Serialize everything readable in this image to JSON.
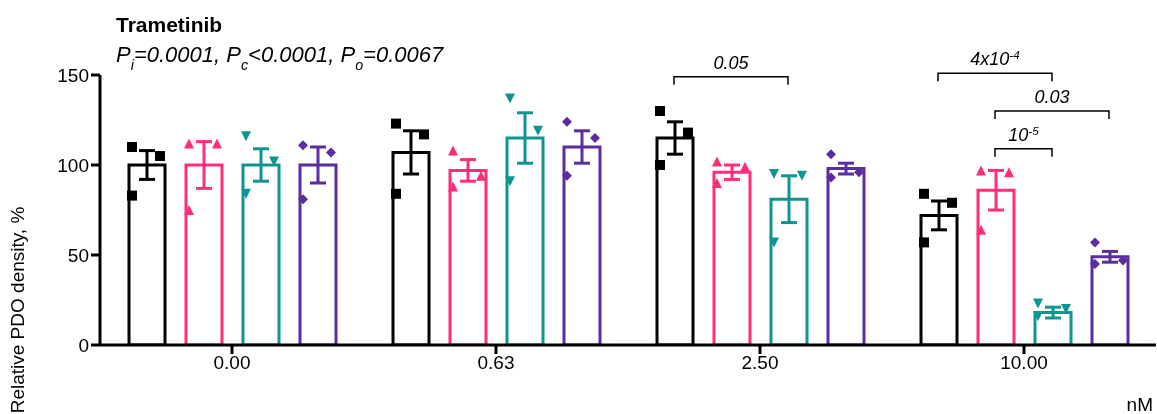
{
  "chart_data": {
    "type": "bar",
    "title": "Trametinib",
    "subtitle": "P$_{i}$=0.0001, P$_{c}$<0.0001, P$_{o}$=0.0067",
    "xlabel": "nM",
    "ylabel": "Relative PDO density, %",
    "categories": [
      "0.00",
      "0.63",
      "2.50",
      "10.00"
    ],
    "ylim": [
      0,
      150
    ],
    "yticks": [
      0,
      50,
      100,
      150
    ],
    "annotations": [
      "0.05",
      "4x10$^{-4}$",
      "0.03",
      "10$^{-5}$"
    ],
    "series": [
      {
        "type": "bar",
        "color": "#000000",
        "values": [
          100,
          107,
          115,
          72
        ],
        "errors": [
          8,
          12,
          9,
          8
        ]
      },
      {
        "type": "bar",
        "color": "#ff2d7a",
        "values": [
          100,
          97,
          96,
          86
        ],
        "errors": [
          13,
          6,
          4,
          11
        ]
      },
      {
        "type": "bar",
        "color": "#0f9590",
        "values": [
          100,
          115,
          81,
          18
        ],
        "errors": [
          9,
          14,
          13,
          3
        ]
      },
      {
        "type": "bar",
        "color": "#5b2d9f",
        "values": [
          100,
          110,
          98,
          49
        ],
        "errors": [
          10,
          9,
          3,
          3
        ]
      },
      {
        "type": "scatter",
        "color": "#000000",
        "marker": "square",
        "x": [
          "0.00",
          "0.00",
          "0.00",
          "0.63",
          "0.63",
          "0.63",
          "2.50",
          "2.50",
          "2.50",
          "10.00",
          "10.00",
          "10.00"
        ],
        "values": [
          110,
          105,
          83,
          123,
          117,
          84,
          130,
          118,
          100,
          84,
          79,
          57
        ]
      },
      {
        "type": "scatter",
        "color": "#ff2d7a",
        "marker": "triangle",
        "x": [
          "0.00",
          "0.00",
          "0.00",
          "0.63",
          "0.63",
          "0.63",
          "2.50",
          "2.50",
          "2.50",
          "10.00",
          "10.00",
          "10.00"
        ],
        "values": [
          112,
          112,
          75,
          108,
          94,
          88,
          102,
          99,
          90,
          97,
          96,
          64
        ]
      },
      {
        "type": "scatter",
        "color": "#0f9590",
        "marker": "triangle-down",
        "x": [
          "0.00",
          "0.00",
          "0.00",
          "0.63",
          "0.63",
          "0.63",
          "2.50",
          "2.50",
          "2.50",
          "10.00",
          "10.00",
          "10.00"
        ],
        "values": [
          116,
          102,
          84,
          137,
          119,
          91,
          95,
          94,
          57,
          23,
          20,
          16
        ]
      },
      {
        "type": "scatter",
        "color": "#5b2d9f",
        "marker": "diamond",
        "x": [
          "0.00",
          "0.00",
          "0.00",
          "0.63",
          "0.63",
          "0.63",
          "2.50",
          "2.50",
          "2.50",
          "10.00",
          "10.00",
          "10.00"
        ],
        "values": [
          111,
          107,
          81,
          124,
          115,
          94,
          106,
          96,
          93,
          57,
          47,
          45
        ]
      }
    ]
  }
}
